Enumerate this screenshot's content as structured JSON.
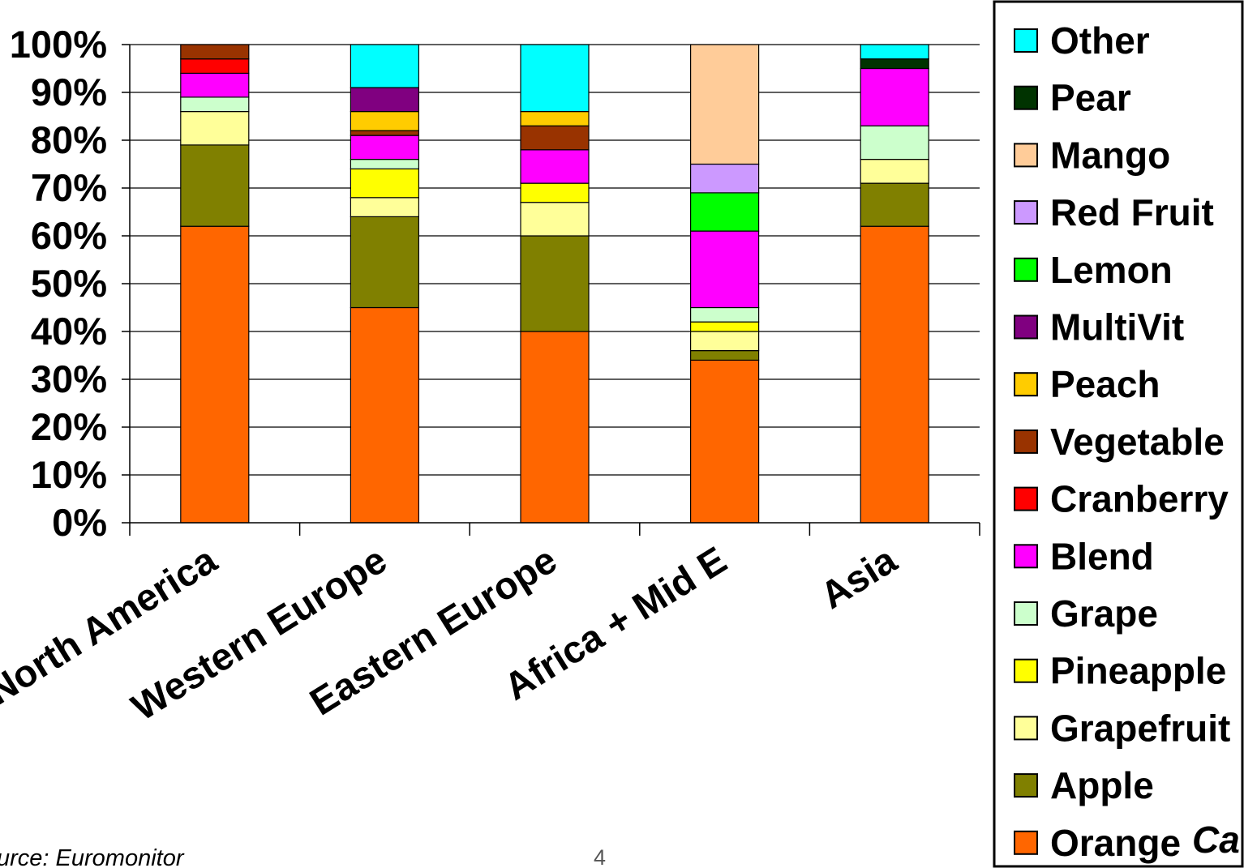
{
  "chart_data": {
    "type": "bar",
    "stacked": true,
    "normalized": true,
    "categories": [
      "North America",
      "Western Europe",
      "Eastern Europe",
      "Africa + Mid E",
      "Asia"
    ],
    "ylim": [
      0,
      100
    ],
    "yticks": [
      "0%",
      "10%",
      "20%",
      "30%",
      "40%",
      "50%",
      "60%",
      "70%",
      "80%",
      "90%",
      "100%"
    ],
    "grid": true,
    "legend_position": "right",
    "series": [
      {
        "name": "Orange",
        "color": "#FF6600",
        "values": [
          62,
          45,
          40,
          34,
          62
        ]
      },
      {
        "name": "Apple",
        "color": "#808000",
        "values": [
          17,
          19,
          20,
          2,
          9
        ]
      },
      {
        "name": "Grapefruit",
        "color": "#FFFF99",
        "values": [
          7,
          4,
          7,
          4,
          5
        ]
      },
      {
        "name": "Pineapple",
        "color": "#FFFF00",
        "values": [
          0,
          6,
          4,
          2,
          0
        ]
      },
      {
        "name": "Grape",
        "color": "#CCFFCC",
        "values": [
          3,
          2,
          0,
          3,
          7
        ]
      },
      {
        "name": "Blend",
        "color": "#FF00FF",
        "values": [
          5,
          5,
          7,
          16,
          12
        ]
      },
      {
        "name": "Cranberry",
        "color": "#FF0000",
        "values": [
          3,
          0,
          0,
          0,
          0
        ]
      },
      {
        "name": "Vegetable",
        "color": "#993300",
        "values": [
          3,
          1,
          5,
          0,
          0
        ]
      },
      {
        "name": "Peach",
        "color": "#FFCC00",
        "values": [
          0,
          4,
          3,
          0,
          0
        ]
      },
      {
        "name": "MultiVit",
        "color": "#800080",
        "values": [
          0,
          5,
          0,
          0,
          0
        ]
      },
      {
        "name": "Lemon",
        "color": "#00FF00",
        "values": [
          0,
          0,
          0,
          8,
          0
        ]
      },
      {
        "name": "Red Fruit",
        "color": "#CC99FF",
        "values": [
          0,
          0,
          0,
          6,
          0
        ]
      },
      {
        "name": "Mango",
        "color": "#FFCC99",
        "values": [
          0,
          0,
          0,
          25,
          0
        ]
      },
      {
        "name": "Pear",
        "color": "#003300",
        "values": [
          0,
          0,
          0,
          0,
          2
        ]
      },
      {
        "name": "Other",
        "color": "#00FFFF",
        "values": [
          0,
          9,
          14,
          0,
          3
        ]
      }
    ]
  },
  "footer": {
    "source": "urce: Euromonitor",
    "page_number": "4",
    "logo_fragment": "Ca"
  }
}
